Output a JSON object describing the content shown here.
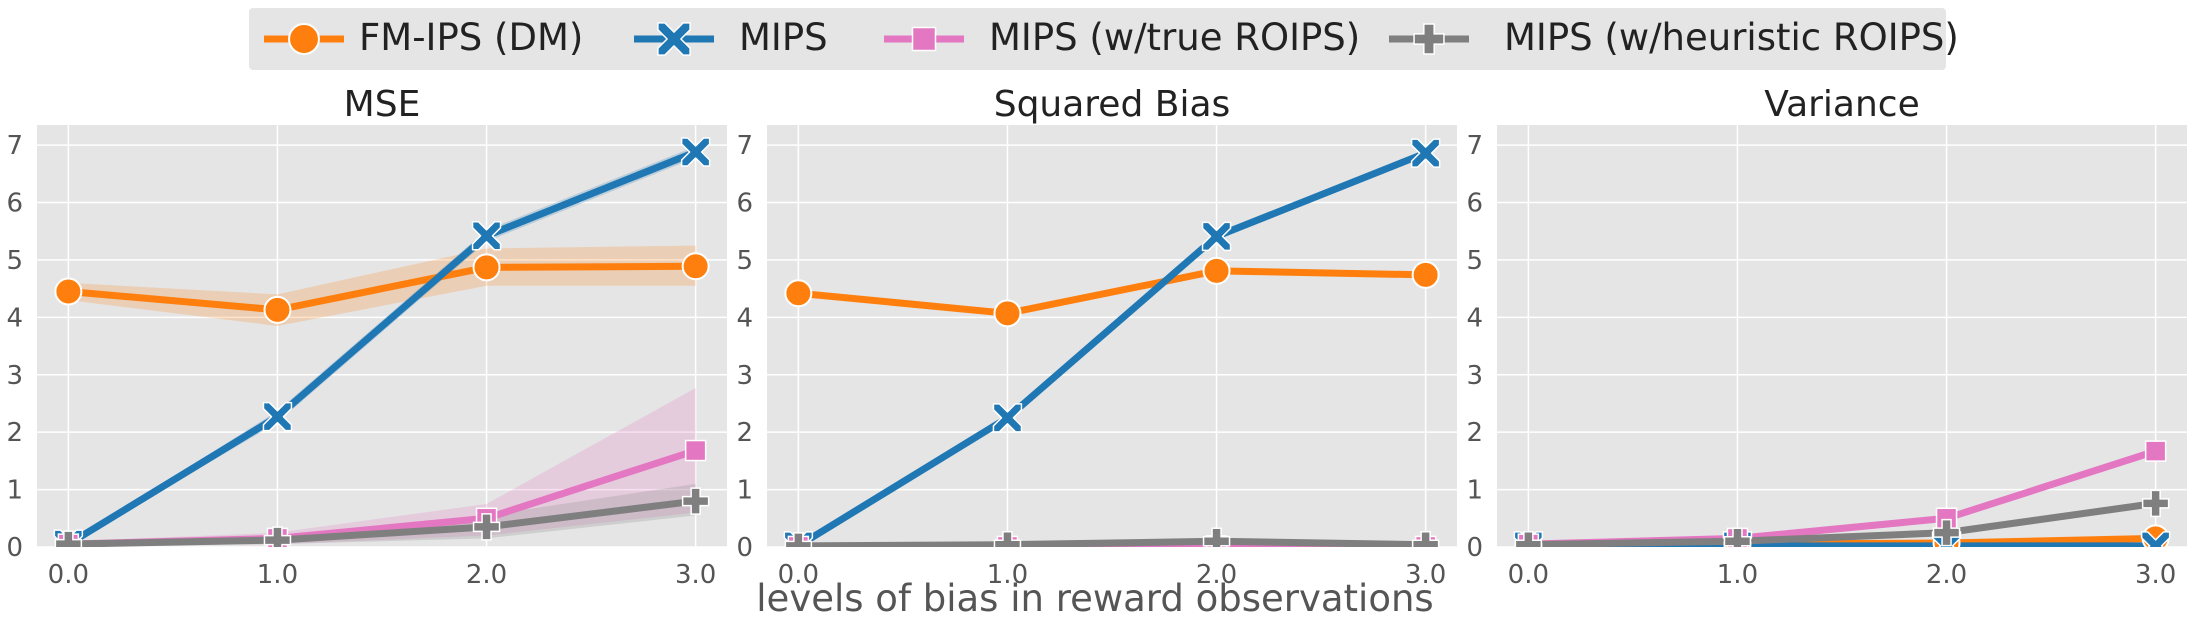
{
  "legend": [
    {
      "name": "FM-IPS (DM)",
      "color": "#ff7f0e",
      "marker": "circle"
    },
    {
      "name": "MIPS",
      "color": "#1f77b4",
      "marker": "x"
    },
    {
      "name": "MIPS (w/true ROIPS)",
      "color": "#e377c2",
      "marker": "square"
    },
    {
      "name": "MIPS (w/heuristic ROIPS)",
      "color": "#7f7f7f",
      "marker": "plus"
    }
  ],
  "xlabel": "levels of bias in reward observations",
  "chart_data": [
    {
      "type": "line",
      "title": "MSE",
      "x": [
        0.0,
        1.0,
        2.0,
        3.0
      ],
      "xticks": [
        "0.0",
        "1.0",
        "2.0",
        "3.0"
      ],
      "yticks": [
        "0",
        "1",
        "2",
        "3",
        "4",
        "5",
        "6",
        "7"
      ],
      "ylim": [
        0,
        7.35
      ],
      "grid": true,
      "series": [
        {
          "name": "FM-IPS (DM)",
          "values": [
            4.45,
            4.13,
            4.87,
            4.89
          ],
          "ci_low": [
            4.3,
            3.85,
            4.55,
            4.55
          ],
          "ci_high": [
            4.6,
            4.4,
            5.2,
            5.25
          ]
        },
        {
          "name": "MIPS",
          "values": [
            0.05,
            2.27,
            5.42,
            6.88
          ],
          "ci_low": [
            0.03,
            2.17,
            5.32,
            6.78
          ],
          "ci_high": [
            0.07,
            2.37,
            5.52,
            6.98
          ]
        },
        {
          "name": "MIPS (w/true ROIPS)",
          "values": [
            0.05,
            0.15,
            0.5,
            1.68
          ],
          "ci_low": [
            0.02,
            0.05,
            0.2,
            0.6
          ],
          "ci_high": [
            0.1,
            0.25,
            0.75,
            2.77
          ]
        },
        {
          "name": "MIPS (w/heuristic ROIPS)",
          "values": [
            0.05,
            0.12,
            0.35,
            0.8
          ],
          "ci_low": [
            0.02,
            0.05,
            0.15,
            0.55
          ],
          "ci_high": [
            0.08,
            0.2,
            0.55,
            1.1
          ]
        }
      ]
    },
    {
      "type": "line",
      "title": "Squared Bias",
      "x": [
        0.0,
        1.0,
        2.0,
        3.0
      ],
      "xticks": [
        "0.0",
        "1.0",
        "2.0",
        "3.0"
      ],
      "yticks": [
        "0",
        "1",
        "2",
        "3",
        "4",
        "5",
        "6",
        "7"
      ],
      "ylim": [
        0,
        7.35
      ],
      "grid": true,
      "series": [
        {
          "name": "FM-IPS (DM)",
          "values": [
            4.42,
            4.07,
            4.81,
            4.74
          ]
        },
        {
          "name": "MIPS",
          "values": [
            0.02,
            2.25,
            5.41,
            6.86
          ]
        },
        {
          "name": "MIPS (w/true ROIPS)",
          "values": [
            0.01,
            0.01,
            0.02,
            0.01
          ]
        },
        {
          "name": "MIPS (w/heuristic ROIPS)",
          "values": [
            0.02,
            0.04,
            0.1,
            0.04
          ]
        }
      ]
    },
    {
      "type": "line",
      "title": "Variance",
      "x": [
        0.0,
        1.0,
        2.0,
        3.0
      ],
      "xticks": [
        "0.0",
        "1.0",
        "2.0",
        "3.0"
      ],
      "yticks": [
        "0",
        "1",
        "2",
        "3",
        "4",
        "5",
        "6",
        "7"
      ],
      "ylim": [
        0,
        7.35
      ],
      "grid": true,
      "series": [
        {
          "name": "FM-IPS (DM)",
          "values": [
            0.03,
            0.05,
            0.07,
            0.15
          ]
        },
        {
          "name": "MIPS",
          "values": [
            0.02,
            0.02,
            0.02,
            0.02
          ]
        },
        {
          "name": "MIPS (w/true ROIPS)",
          "values": [
            0.05,
            0.15,
            0.5,
            1.67
          ]
        },
        {
          "name": "MIPS (w/heuristic ROIPS)",
          "values": [
            0.04,
            0.1,
            0.25,
            0.76
          ]
        }
      ]
    }
  ]
}
